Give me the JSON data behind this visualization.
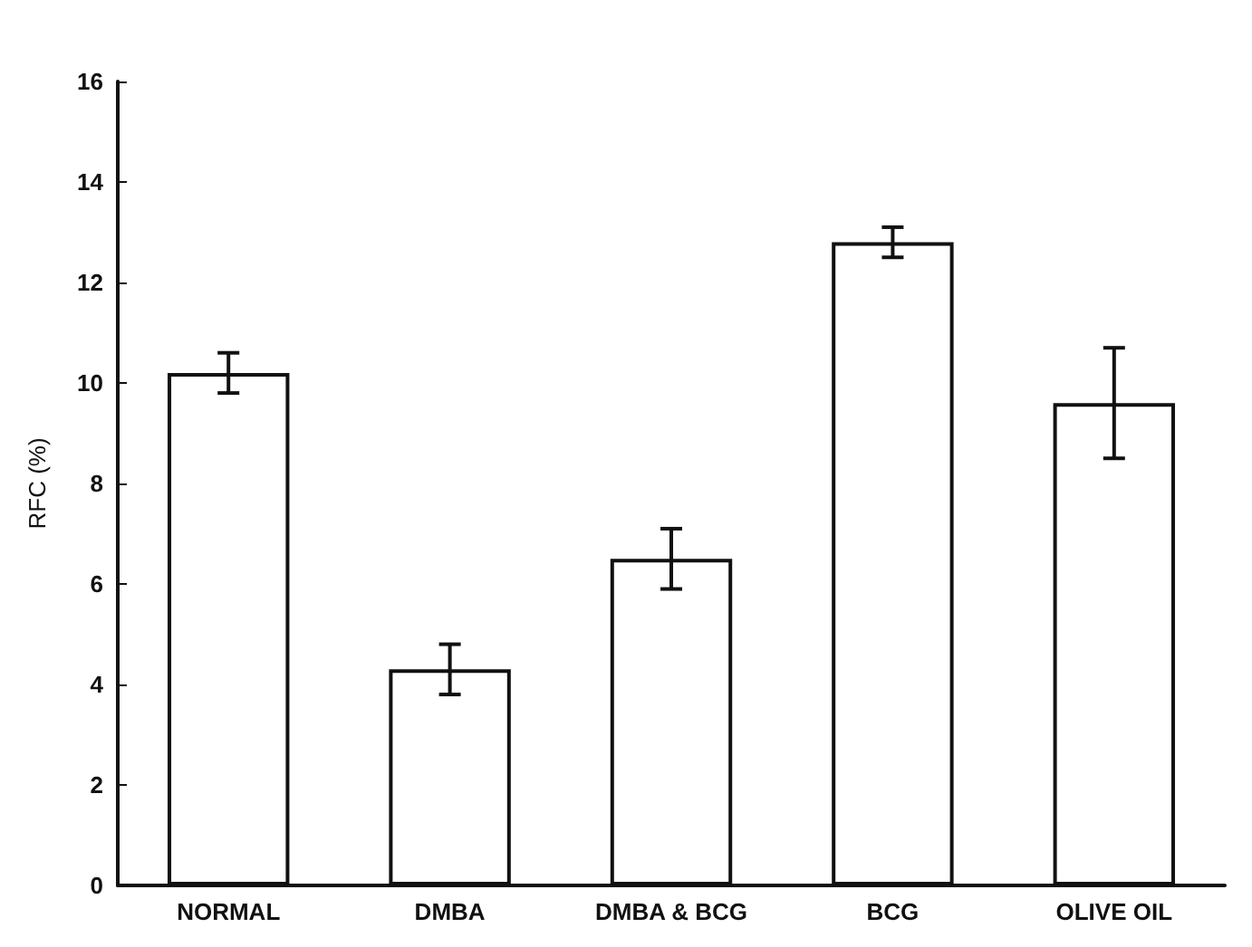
{
  "chart_data": {
    "type": "bar",
    "ylabel": "RFC (%)",
    "categories": [
      "NORMAL",
      "DMBA",
      "DMBA & BCG",
      "BCG",
      "OLIVE OIL"
    ],
    "values": [
      10.2,
      4.3,
      6.5,
      12.8,
      9.6
    ],
    "errors": [
      0.4,
      0.5,
      0.6,
      0.3,
      1.1
    ],
    "color": "#ffffff",
    "ylim": [
      0,
      16
    ],
    "yticks": [
      0,
      2,
      4,
      6,
      8,
      10,
      12,
      14,
      16
    ],
    "grid": false
  }
}
